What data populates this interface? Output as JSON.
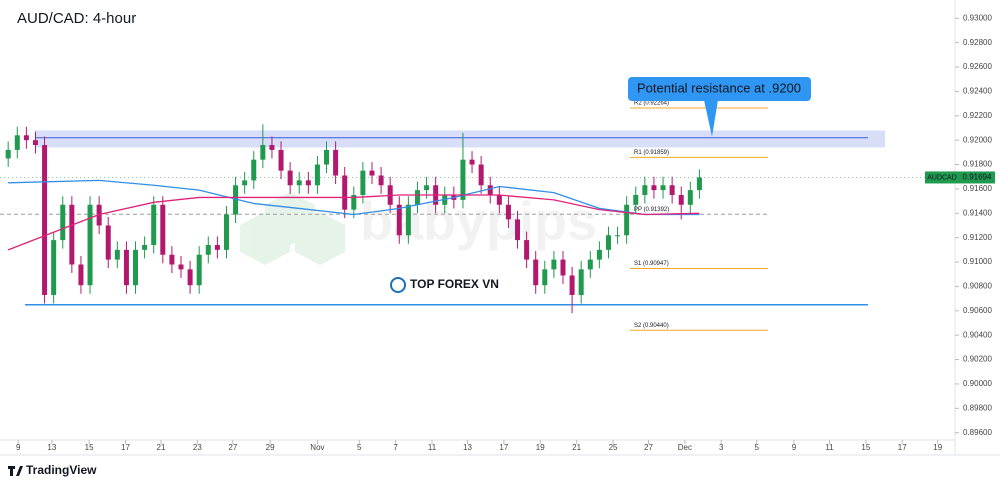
{
  "chart_data": {
    "type": "candlestick",
    "title": "AUD/CAD: 4-hour",
    "symbol": "AUDCAD",
    "last_price": {
      "value": 0.91694,
      "label": "0.91694"
    },
    "brand": "TradingView",
    "watermarks": [
      "babypips",
      "TOP FOREX VN"
    ],
    "annotation": "Potential resistance at .9200",
    "up_color": "#1f9a4e",
    "down_color": "#b3186f",
    "xlim": [
      -0.9,
      104.1
    ],
    "ylim": [
      0.8954,
      0.9315
    ],
    "xticks": [
      {
        "value": 1.1,
        "label": "9"
      },
      {
        "value": 4.8,
        "label": "13"
      },
      {
        "value": 8.9,
        "label": "15"
      },
      {
        "value": 12.9,
        "label": "17"
      },
      {
        "value": 16.8,
        "label": "21"
      },
      {
        "value": 20.8,
        "label": "23"
      },
      {
        "value": 24.7,
        "label": "27"
      },
      {
        "value": 28.8,
        "label": "29"
      },
      {
        "value": 34,
        "label": "Nov"
      },
      {
        "value": 38.6,
        "label": "5"
      },
      {
        "value": 42.6,
        "label": "7"
      },
      {
        "value": 46.6,
        "label": "11"
      },
      {
        "value": 50.5,
        "label": "13"
      },
      {
        "value": 54.5,
        "label": "17"
      },
      {
        "value": 58.5,
        "label": "19"
      },
      {
        "value": 62.5,
        "label": "21"
      },
      {
        "value": 66.5,
        "label": "25"
      },
      {
        "value": 70.4,
        "label": "27"
      },
      {
        "value": 74.4,
        "label": "Dec"
      },
      {
        "value": 78.4,
        "label": "3"
      },
      {
        "value": 82.3,
        "label": "5"
      },
      {
        "value": 86.4,
        "label": "9"
      },
      {
        "value": 90.3,
        "label": "11"
      },
      {
        "value": 94.3,
        "label": "15"
      },
      {
        "value": 98.3,
        "label": "17"
      },
      {
        "value": 102.2,
        "label": "19"
      }
    ],
    "yticks": [
      {
        "value": 0.93,
        "label": "0.93000"
      },
      {
        "value": 0.928,
        "label": "0.92800"
      },
      {
        "value": 0.926,
        "label": "0.92600"
      },
      {
        "value": 0.924,
        "label": "0.92400"
      },
      {
        "value": 0.922,
        "label": "0.92200"
      },
      {
        "value": 0.92,
        "label": "0.92000"
      },
      {
        "value": 0.918,
        "label": "0.91800"
      },
      {
        "value": 0.916,
        "label": "0.91600"
      },
      {
        "value": 0.914,
        "label": "0.91400"
      },
      {
        "value": 0.912,
        "label": "0.91200"
      },
      {
        "value": 0.91,
        "label": "0.91000"
      },
      {
        "value": 0.908,
        "label": "0.90800"
      },
      {
        "value": 0.906,
        "label": "0.90600"
      },
      {
        "value": 0.904,
        "label": "0.90400"
      },
      {
        "value": 0.902,
        "label": "0.90200"
      },
      {
        "value": 0.9,
        "label": "0.90000"
      },
      {
        "value": 0.898,
        "label": "0.89800"
      },
      {
        "value": 0.896,
        "label": "0.89600"
      }
    ],
    "open": [
      0.9185,
      0.9192,
      0.9204,
      0.92,
      0.9196,
      0.9073,
      0.9118,
      0.9147,
      0.9098,
      0.9081,
      0.9147,
      0.913,
      0.9102,
      0.911,
      0.9081,
      0.911,
      0.9114,
      0.9147,
      0.9106,
      0.9098,
      0.9094,
      0.9081,
      0.9106,
      0.9114,
      0.911,
      0.9139,
      0.9163,
      0.9167,
      0.9184,
      0.9196,
      0.9192,
      0.9175,
      0.9163,
      0.9167,
      0.9163,
      0.918,
      0.9192,
      0.9171,
      0.9143,
      0.9155,
      0.9175,
      0.9171,
      0.9163,
      0.9147,
      0.9122,
      0.9147,
      0.9159,
      0.9163,
      0.9147,
      0.9155,
      0.9151,
      0.9184,
      0.918,
      0.9163,
      0.9155,
      0.9147,
      0.9135,
      0.9118,
      0.9102,
      0.9081,
      0.9094,
      0.9102,
      0.9089,
      0.9073,
      0.9094,
      0.9102,
      0.911,
      0.9122,
      0.9122,
      0.9147,
      0.9155,
      0.9163,
      0.9159,
      0.9163,
      0.9155,
      0.9147,
      0.9159
    ],
    "high": [
      0.9199,
      0.9211,
      0.9211,
      0.9207,
      0.9203,
      0.9125,
      0.9154,
      0.9154,
      0.9105,
      0.9154,
      0.9154,
      0.9137,
      0.9117,
      0.9117,
      0.9117,
      0.9121,
      0.9154,
      0.9154,
      0.9113,
      0.9105,
      0.9101,
      0.9113,
      0.9121,
      0.9121,
      0.9146,
      0.917,
      0.9174,
      0.9191,
      0.9213,
      0.9203,
      0.9199,
      0.9182,
      0.9174,
      0.9174,
      0.9187,
      0.9199,
      0.9199,
      0.9178,
      0.9162,
      0.9182,
      0.9182,
      0.9178,
      0.917,
      0.9154,
      0.9154,
      0.9166,
      0.917,
      0.917,
      0.9162,
      0.9162,
      0.9206,
      0.9191,
      0.9187,
      0.917,
      0.9162,
      0.9154,
      0.9142,
      0.9125,
      0.9109,
      0.9101,
      0.9109,
      0.9109,
      0.9096,
      0.9101,
      0.9109,
      0.9117,
      0.9129,
      0.9129,
      0.9154,
      0.9162,
      0.917,
      0.917,
      0.917,
      0.917,
      0.9162,
      0.9166,
      0.9176
    ],
    "low": [
      0.9178,
      0.9185,
      0.9193,
      0.9189,
      0.9066,
      0.9066,
      0.9111,
      0.9091,
      0.9074,
      0.9074,
      0.9123,
      0.9095,
      0.9095,
      0.9074,
      0.9074,
      0.9103,
      0.9107,
      0.9099,
      0.9091,
      0.9087,
      0.9074,
      0.9074,
      0.9099,
      0.9103,
      0.9103,
      0.9132,
      0.9156,
      0.916,
      0.9177,
      0.9185,
      0.9168,
      0.9156,
      0.9156,
      0.9156,
      0.9156,
      0.9173,
      0.9164,
      0.9136,
      0.9136,
      0.9148,
      0.9164,
      0.9156,
      0.914,
      0.9115,
      0.9115,
      0.914,
      0.9152,
      0.914,
      0.914,
      0.9144,
      0.9144,
      0.9173,
      0.9156,
      0.9148,
      0.914,
      0.9128,
      0.9111,
      0.9095,
      0.9074,
      0.9074,
      0.9087,
      0.9082,
      0.9058,
      0.9066,
      0.9087,
      0.9095,
      0.9103,
      0.9115,
      0.9115,
      0.914,
      0.9148,
      0.9152,
      0.9152,
      0.9148,
      0.9135,
      0.914,
      0.9152
    ],
    "close": [
      0.9192,
      0.9204,
      0.92,
      0.9196,
      0.9073,
      0.9118,
      0.9147,
      0.9098,
      0.9081,
      0.9147,
      0.913,
      0.9102,
      0.911,
      0.9081,
      0.911,
      0.9114,
      0.9147,
      0.9106,
      0.9098,
      0.9094,
      0.9081,
      0.9106,
      0.9114,
      0.911,
      0.9139,
      0.9163,
      0.9167,
      0.9184,
      0.9196,
      0.9192,
      0.9175,
      0.9163,
      0.9167,
      0.9163,
      0.918,
      0.9192,
      0.9171,
      0.9143,
      0.9155,
      0.9175,
      0.9171,
      0.9163,
      0.9147,
      0.9122,
      0.9147,
      0.9159,
      0.9163,
      0.9147,
      0.9155,
      0.9151,
      0.9184,
      0.918,
      0.9163,
      0.9155,
      0.9147,
      0.9135,
      0.9118,
      0.9102,
      0.9081,
      0.9094,
      0.9102,
      0.9089,
      0.9073,
      0.9094,
      0.9102,
      0.911,
      0.9122,
      0.9122,
      0.9147,
      0.9155,
      0.9163,
      0.9159,
      0.9163,
      0.9155,
      0.9147,
      0.9159,
      0.91694
    ],
    "moving_averages": [
      {
        "color": "#2f8fe8",
        "x": [
          0,
          10,
          16,
          21,
          27,
          32,
          38,
          43,
          49,
          54,
          60,
          65,
          70,
          76
        ],
        "values": [
          0.9165,
          0.9167,
          0.9163,
          0.9159,
          0.9148,
          0.9144,
          0.9139,
          0.9144,
          0.9153,
          0.9162,
          0.9157,
          0.9144,
          0.9139,
          0.9139
        ]
      },
      {
        "color": "#e0227a",
        "x": [
          0,
          10,
          16,
          21,
          27,
          32,
          38,
          43,
          49,
          54,
          60,
          65,
          70,
          76
        ],
        "values": [
          0.911,
          0.9139,
          0.9149,
          0.9153,
          0.9153,
          0.9153,
          0.9153,
          0.9155,
          0.9155,
          0.9155,
          0.9151,
          0.9143,
          0.9139,
          0.914
        ]
      }
    ],
    "resistance_zone": {
      "low": 0.9194,
      "high": 0.9208,
      "line": 0.9202,
      "color": "#3b5bdb"
    },
    "support_line": {
      "value": 0.9065,
      "color": "#2f8fe8"
    },
    "pivots": [
      {
        "label": "R2 (0.92264)",
        "value": 0.92264,
        "color": "#f5a623"
      },
      {
        "label": "R1 (0.91859)",
        "value": 0.91859,
        "color": "#f5a623"
      },
      {
        "label": "PP (0.91392)",
        "value": 0.91392,
        "color": "#9e9e9e"
      },
      {
        "label": "S1 (0.90947)",
        "value": 0.90947,
        "color": "#f5a623"
      },
      {
        "label": "S2 (0.90440)",
        "value": 0.9044,
        "color": "#f5a623"
      }
    ]
  }
}
